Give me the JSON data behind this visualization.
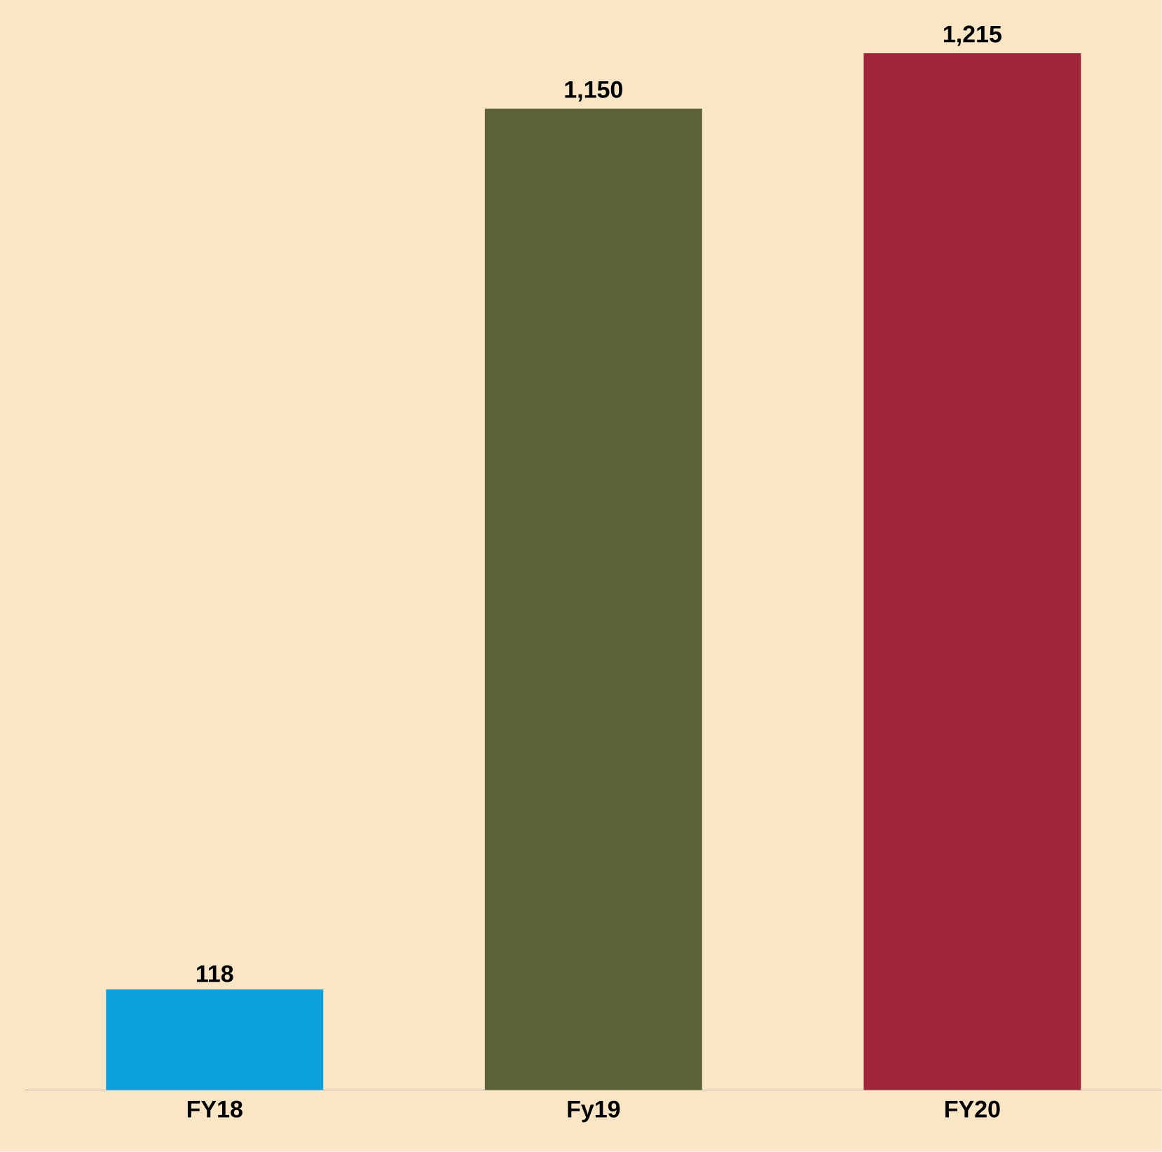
{
  "chart_data": {
    "type": "bar",
    "categories": [
      "FY18",
      "Fy19",
      "FY20"
    ],
    "values": [
      118,
      1150,
      1215
    ],
    "colors": [
      "#0ca0dc",
      "#5c6337",
      "#a0243c"
    ],
    "value_labels": [
      "118",
      "1,150",
      "1,215"
    ]
  }
}
